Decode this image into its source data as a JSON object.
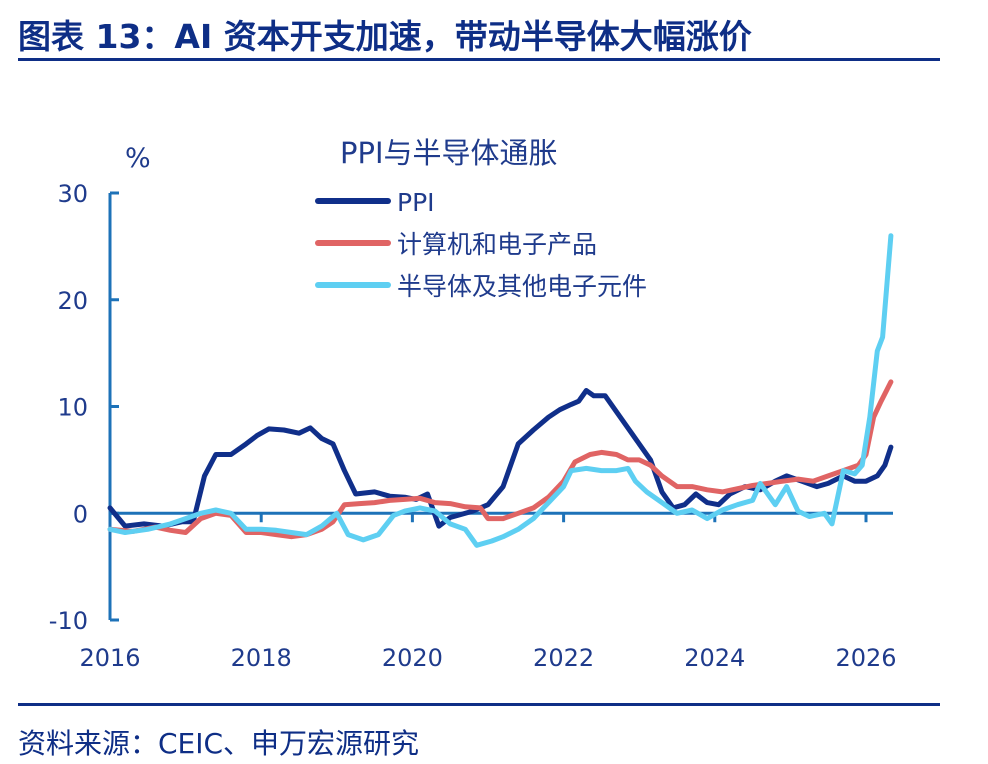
{
  "header": {
    "figure_title": "图表 13：AI 资本开支加速，带动半导体大幅涨价"
  },
  "footer": {
    "source": "资料来源：CEIC、申万宏源研究"
  },
  "colors": {
    "PPI": "#102f8a",
    "计算机和电子产品": "#e06464",
    "半导体及其他电子元件": "#5ecff2",
    "axis": "#1d72b8",
    "text": "#1f3b8c"
  },
  "chart_data": {
    "type": "line",
    "title": "PPI与半导体通胀",
    "ylabel": "%",
    "xlabel": "",
    "ylim": [
      -10,
      30
    ],
    "yticks": [
      -10,
      0,
      10,
      20,
      30
    ],
    "xticks": [
      "2016",
      "2018",
      "2020",
      "2022",
      "2024",
      "2026"
    ],
    "legend_position": "top-left",
    "grid": false,
    "series": [
      {
        "name": "PPI",
        "color": "#102f8a",
        "points": [
          [
            2016.0,
            0.5
          ],
          [
            2016.2,
            -1.2
          ],
          [
            2016.45,
            -1.0
          ],
          [
            2016.7,
            -1.2
          ],
          [
            2016.95,
            -0.8
          ],
          [
            2017.1,
            -0.8
          ],
          [
            2017.25,
            3.5
          ],
          [
            2017.4,
            5.5
          ],
          [
            2017.6,
            5.5
          ],
          [
            2017.8,
            6.5
          ],
          [
            2017.95,
            7.3
          ],
          [
            2018.1,
            7.9
          ],
          [
            2018.3,
            7.8
          ],
          [
            2018.5,
            7.5
          ],
          [
            2018.65,
            8.0
          ],
          [
            2018.8,
            7.0
          ],
          [
            2018.95,
            6.5
          ],
          [
            2019.1,
            4.0
          ],
          [
            2019.25,
            1.8
          ],
          [
            2019.5,
            2.0
          ],
          [
            2019.7,
            1.6
          ],
          [
            2019.9,
            1.5
          ],
          [
            2020.05,
            1.3
          ],
          [
            2020.2,
            1.8
          ],
          [
            2020.35,
            -1.2
          ],
          [
            2020.5,
            -0.4
          ],
          [
            2020.8,
            0.2
          ],
          [
            2021.0,
            0.8
          ],
          [
            2021.2,
            2.5
          ],
          [
            2021.4,
            6.5
          ],
          [
            2021.6,
            7.8
          ],
          [
            2021.8,
            9.0
          ],
          [
            2021.95,
            9.7
          ],
          [
            2022.1,
            10.2
          ],
          [
            2022.2,
            10.5
          ],
          [
            2022.3,
            11.5
          ],
          [
            2022.4,
            11.0
          ],
          [
            2022.55,
            11.0
          ],
          [
            2022.7,
            9.5
          ],
          [
            2022.85,
            8.0
          ],
          [
            2023.0,
            6.5
          ],
          [
            2023.15,
            5.0
          ],
          [
            2023.3,
            2.0
          ],
          [
            2023.45,
            0.5
          ],
          [
            2023.6,
            0.8
          ],
          [
            2023.75,
            1.8
          ],
          [
            2023.9,
            1.0
          ],
          [
            2024.05,
            0.8
          ],
          [
            2024.2,
            1.8
          ],
          [
            2024.4,
            2.5
          ],
          [
            2024.6,
            2.2
          ],
          [
            2024.8,
            3.0
          ],
          [
            2024.95,
            3.5
          ],
          [
            2025.15,
            3.0
          ],
          [
            2025.35,
            2.5
          ],
          [
            2025.5,
            2.8
          ],
          [
            2025.7,
            3.5
          ],
          [
            2025.85,
            3.0
          ],
          [
            2026.0,
            3.0
          ],
          [
            2026.15,
            3.5
          ],
          [
            2026.25,
            4.5
          ],
          [
            2026.33,
            6.2
          ]
        ]
      },
      {
        "name": "计算机和电子产品",
        "color": "#e06464",
        "points": [
          [
            2016.0,
            -1.5
          ],
          [
            2016.3,
            -1.7
          ],
          [
            2016.6,
            -1.3
          ],
          [
            2016.8,
            -1.6
          ],
          [
            2017.0,
            -1.8
          ],
          [
            2017.2,
            -0.5
          ],
          [
            2017.4,
            0.0
          ],
          [
            2017.6,
            -0.2
          ],
          [
            2017.8,
            -1.8
          ],
          [
            2018.0,
            -1.8
          ],
          [
            2018.2,
            -2.0
          ],
          [
            2018.4,
            -2.2
          ],
          [
            2018.6,
            -2.0
          ],
          [
            2018.8,
            -1.5
          ],
          [
            2018.95,
            -0.8
          ],
          [
            2019.1,
            0.8
          ],
          [
            2019.3,
            0.9
          ],
          [
            2019.5,
            1.0
          ],
          [
            2019.7,
            1.2
          ],
          [
            2019.9,
            1.3
          ],
          [
            2020.1,
            1.4
          ],
          [
            2020.3,
            1.0
          ],
          [
            2020.5,
            0.9
          ],
          [
            2020.7,
            0.6
          ],
          [
            2020.9,
            0.5
          ],
          [
            2021.0,
            -0.5
          ],
          [
            2021.2,
            -0.5
          ],
          [
            2021.4,
            0.0
          ],
          [
            2021.6,
            0.5
          ],
          [
            2021.8,
            1.5
          ],
          [
            2022.0,
            3.0
          ],
          [
            2022.15,
            4.8
          ],
          [
            2022.35,
            5.5
          ],
          [
            2022.5,
            5.7
          ],
          [
            2022.7,
            5.5
          ],
          [
            2022.85,
            5.0
          ],
          [
            2023.0,
            5.0
          ],
          [
            2023.15,
            4.5
          ],
          [
            2023.3,
            3.5
          ],
          [
            2023.5,
            2.5
          ],
          [
            2023.7,
            2.5
          ],
          [
            2023.9,
            2.2
          ],
          [
            2024.1,
            2.0
          ],
          [
            2024.3,
            2.3
          ],
          [
            2024.5,
            2.6
          ],
          [
            2024.7,
            2.8
          ],
          [
            2024.9,
            3.0
          ],
          [
            2025.1,
            3.2
          ],
          [
            2025.3,
            3.0
          ],
          [
            2025.5,
            3.5
          ],
          [
            2025.7,
            4.0
          ],
          [
            2025.9,
            4.5
          ],
          [
            2026.0,
            5.5
          ],
          [
            2026.1,
            9.0
          ],
          [
            2026.2,
            10.5
          ],
          [
            2026.33,
            12.3
          ]
        ]
      },
      {
        "name": "半导体及其他电子元件",
        "color": "#5ecff2",
        "points": [
          [
            2016.0,
            -1.5
          ],
          [
            2016.2,
            -1.8
          ],
          [
            2016.5,
            -1.5
          ],
          [
            2016.8,
            -1.0
          ],
          [
            2017.0,
            -0.5
          ],
          [
            2017.2,
            0.0
          ],
          [
            2017.4,
            0.3
          ],
          [
            2017.6,
            0.0
          ],
          [
            2017.8,
            -1.5
          ],
          [
            2018.0,
            -1.5
          ],
          [
            2018.2,
            -1.6
          ],
          [
            2018.4,
            -1.8
          ],
          [
            2018.6,
            -2.0
          ],
          [
            2018.8,
            -1.2
          ],
          [
            2019.0,
            0.0
          ],
          [
            2019.15,
            -2.0
          ],
          [
            2019.35,
            -2.5
          ],
          [
            2019.55,
            -2.0
          ],
          [
            2019.75,
            -0.2
          ],
          [
            2019.9,
            0.2
          ],
          [
            2020.1,
            0.5
          ],
          [
            2020.3,
            0.2
          ],
          [
            2020.5,
            -1.0
          ],
          [
            2020.7,
            -1.5
          ],
          [
            2020.85,
            -3.0
          ],
          [
            2021.05,
            -2.6
          ],
          [
            2021.2,
            -2.2
          ],
          [
            2021.4,
            -1.5
          ],
          [
            2021.6,
            -0.5
          ],
          [
            2021.8,
            1.0
          ],
          [
            2022.0,
            2.5
          ],
          [
            2022.1,
            4.0
          ],
          [
            2022.3,
            4.2
          ],
          [
            2022.5,
            4.0
          ],
          [
            2022.7,
            4.0
          ],
          [
            2022.85,
            4.2
          ],
          [
            2022.95,
            3.0
          ],
          [
            2023.1,
            2.0
          ],
          [
            2023.3,
            1.0
          ],
          [
            2023.5,
            0.0
          ],
          [
            2023.7,
            0.3
          ],
          [
            2023.9,
            -0.5
          ],
          [
            2024.1,
            0.3
          ],
          [
            2024.3,
            0.8
          ],
          [
            2024.5,
            1.2
          ],
          [
            2024.6,
            2.8
          ],
          [
            2024.8,
            0.8
          ],
          [
            2024.95,
            2.5
          ],
          [
            2025.1,
            0.2
          ],
          [
            2025.25,
            -0.3
          ],
          [
            2025.45,
            0.0
          ],
          [
            2025.55,
            -1.0
          ],
          [
            2025.7,
            4.0
          ],
          [
            2025.85,
            3.7
          ],
          [
            2025.95,
            4.5
          ],
          [
            2026.05,
            9.0
          ],
          [
            2026.15,
            15.2
          ],
          [
            2026.22,
            16.5
          ],
          [
            2026.33,
            26.0
          ]
        ]
      }
    ]
  }
}
